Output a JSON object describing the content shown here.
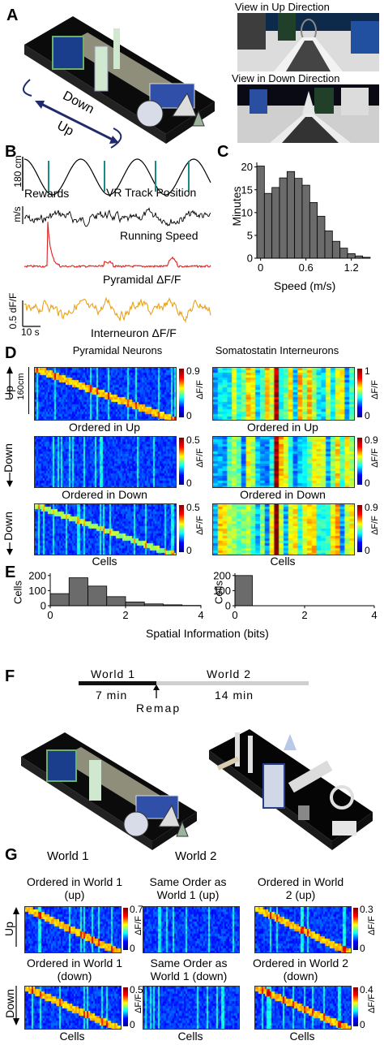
{
  "colors": {
    "reward": "#1a8a86",
    "speed": "#000000",
    "pyramidal": "#e0201a",
    "interneuron": "#e8a21c",
    "bars": "#6b6b6b"
  },
  "panelA": {
    "letter": "A",
    "view_up": "View in Up Direction",
    "view_down": "View in Down Direction",
    "arrow_down": "Down",
    "arrow_up": "Up"
  },
  "panelB": {
    "letter": "B",
    "pos_scale": "180 cm",
    "rewards": "Rewards",
    "track_position": "VR Track Position",
    "speed_unit": "m/s",
    "running_speed": "Running Speed",
    "pyramidal": "Pyramidal ΔF/F",
    "interneuron": "Interneuron ΔF/F",
    "dff_scale": "0.5 dF/F",
    "time_scale": "10 s"
  },
  "panelC": {
    "letter": "C"
  },
  "panelD": {
    "letter": "D",
    "title_left": "Pyramidal Neurons",
    "title_right": "Somatostatin Interneurons",
    "up_label": "Up",
    "scale_label": "160cm",
    "down_label": "Down",
    "ordered_up": "Ordered in Up",
    "ordered_down": "Ordered in Down",
    "cells": "Cells",
    "cb_unit": "ΔF/F",
    "cb_left_max": [
      "0.9",
      "0.5",
      "0.5"
    ],
    "cb_right_max": [
      "1",
      "0.9",
      "0.9"
    ],
    "cb_min": "0"
  },
  "panelE": {
    "letter": "E"
  },
  "panelF": {
    "letter": "F",
    "world1": "World 1",
    "world2": "World 2",
    "t1": "7 min",
    "t2": "14 min",
    "remap": "Remap"
  },
  "panelG": {
    "letter": "G",
    "world1": "World 1",
    "world2": "World 2",
    "up_label": "Up",
    "down_label": "Down",
    "top_titles": [
      "Ordered in World 1 (up)",
      "Same Order as World 1 (up)",
      "Ordered in World 2 (up)"
    ],
    "bottom_titles": [
      "Ordered in World 1 (down)",
      "Same Order as World 1 (down)",
      "Ordered in World 2 (down)"
    ],
    "cells": "Cells",
    "cb_top": [
      "0.7",
      "0.3"
    ],
    "cb_bottom": [
      "0.5",
      "0.4"
    ],
    "cb_min": "0",
    "cb_unit": "ΔF/F"
  },
  "chart_data": [
    {
      "type": "bar",
      "panel": "C",
      "xlabel": "Speed (m/s)",
      "ylabel": "Minutes",
      "xticks": [
        "0",
        "0.6",
        "1.2"
      ],
      "yticks": [
        "0",
        "5",
        "10",
        "15",
        "20"
      ],
      "ylim": [
        0,
        21
      ],
      "xlim": [
        -0.05,
        1.45
      ],
      "bin_width": 0.1,
      "bin_starts": [
        -0.05,
        0.05,
        0.15,
        0.25,
        0.35,
        0.45,
        0.55,
        0.65,
        0.75,
        0.85,
        0.95,
        1.05,
        1.15,
        1.25,
        1.35
      ],
      "values": [
        20.2,
        14.2,
        15.5,
        17.6,
        19.0,
        17.5,
        16.0,
        12.2,
        9.2,
        6.0,
        3.7,
        2.2,
        1.0,
        0.5,
        0.2
      ]
    },
    {
      "type": "bar",
      "panel": "E-left",
      "xlabel": "",
      "ylabel": "Cells",
      "xticks": [
        "0",
        "2",
        "4"
      ],
      "yticks": [
        "0",
        "100",
        "200"
      ],
      "ylim": [
        0,
        215
      ],
      "xlim": [
        0,
        4
      ],
      "bin_width": 0.5,
      "bin_starts": [
        0,
        0.5,
        1.0,
        1.5,
        2.0,
        2.5,
        3.0,
        3.5
      ],
      "values": [
        80,
        185,
        130,
        60,
        25,
        12,
        6,
        2
      ]
    },
    {
      "type": "bar",
      "panel": "E-right",
      "xlabel": "Spatial Information (bits)",
      "ylabel": "Cells",
      "xticks": [
        "0",
        "2",
        "4"
      ],
      "yticks": [
        "0",
        "100",
        "200"
      ],
      "ylim": [
        0,
        215
      ],
      "xlim": [
        0,
        4
      ],
      "bin_width": 0.5,
      "bin_starts": [
        0
      ],
      "values": [
        200
      ]
    }
  ]
}
